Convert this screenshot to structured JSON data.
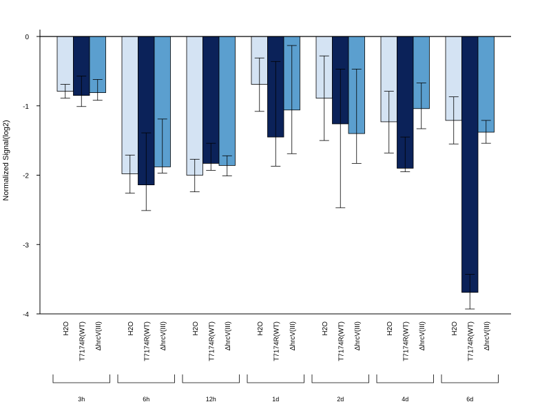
{
  "chart_data": {
    "type": "bar",
    "title": "",
    "xlabel": "",
    "ylabel": "Normalized Signal(log2)",
    "ylim": [
      -4,
      0
    ],
    "yticks": [
      0,
      -1,
      -2,
      -3,
      -4
    ],
    "grid": false,
    "legend": "none",
    "groups": [
      "3h",
      "6h",
      "12h",
      "1d",
      "2d",
      "4d",
      "6d"
    ],
    "series": [
      {
        "name": "H2O",
        "color": "#d4e3f3",
        "values": [
          -0.79,
          -1.98,
          -2.0,
          -0.69,
          -0.89,
          -1.23,
          -1.21
        ],
        "error_low": [
          -0.89,
          -2.26,
          -2.24,
          -1.08,
          -1.5,
          -1.68,
          -1.55
        ],
        "error_high": [
          -0.69,
          -1.71,
          -1.77,
          -0.31,
          -0.28,
          -0.79,
          -0.87
        ]
      },
      {
        "name": "T7174R(WT)",
        "color": "#0b2259",
        "values": [
          -0.85,
          -2.14,
          -1.83,
          -1.45,
          -1.26,
          -1.9,
          -3.69
        ],
        "error_low": [
          -1.01,
          -2.51,
          -1.93,
          -1.87,
          -2.47,
          -1.95,
          -3.93
        ],
        "error_high": [
          -0.57,
          -1.39,
          -1.54,
          -0.36,
          -0.47,
          -1.45,
          -3.43
        ]
      },
      {
        "name": "ΔhrcV(III)",
        "color": "#5b9fcf",
        "values": [
          -0.81,
          -1.88,
          -1.86,
          -1.06,
          -1.4,
          -1.04,
          -1.38
        ],
        "error_low": [
          -0.92,
          -1.97,
          -2.01,
          -1.69,
          -1.83,
          -1.33,
          -1.54
        ],
        "error_high": [
          -0.62,
          -1.19,
          -1.72,
          -0.13,
          -0.47,
          -0.67,
          -1.21
        ]
      }
    ]
  }
}
